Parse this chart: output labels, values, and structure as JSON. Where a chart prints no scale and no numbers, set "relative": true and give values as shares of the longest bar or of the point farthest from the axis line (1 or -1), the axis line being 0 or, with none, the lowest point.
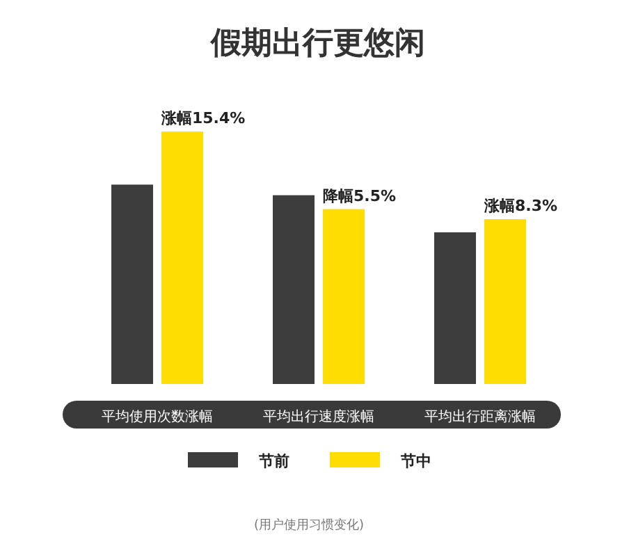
{
  "chart_data": {
    "type": "bar",
    "title": "假期出行更悠闲",
    "relative": true,
    "legend": "bottom",
    "categories": [
      "平均使用次数涨幅",
      "平均出行速度涨幅",
      "平均出行距离涨幅"
    ],
    "series": [
      {
        "name": "节前",
        "color": "#3d3d3d",
        "values": [
          0.79,
          0.748,
          0.601
        ]
      },
      {
        "name": "节中",
        "color": "#ffdd00",
        "values": [
          1,
          0.693,
          0.653
        ]
      }
    ],
    "annotations": [
      {
        "text": "涨幅15.4%",
        "x": "平均使用次数涨幅",
        "y": 1
      },
      {
        "text": "降幅5.5%",
        "x": "平均出行速度涨幅",
        "y": 0.693
      },
      {
        "text": "涨幅8.3%",
        "x": "平均出行距离涨幅",
        "y": 0.653
      },
      "(用户使用习惯变化)"
    ]
  }
}
